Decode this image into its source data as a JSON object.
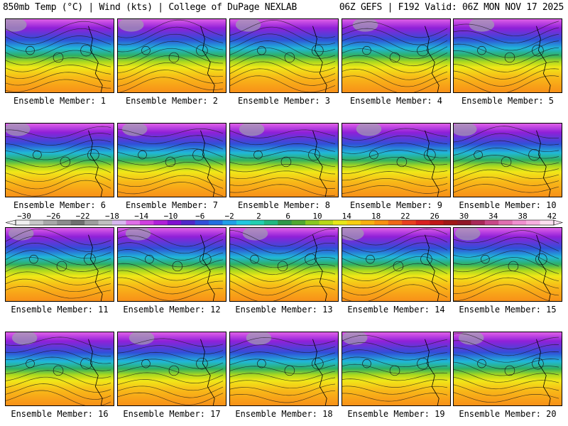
{
  "header": {
    "title": "850mb Temp (°C) | Wind (kts) | College of DuPage NEXLAB",
    "run_info": "06Z GEFS | F192 Valid: 06Z MON NOV 17 2025"
  },
  "members": [
    "Ensemble Member: 1",
    "Ensemble Member: 2",
    "Ensemble Member: 3",
    "Ensemble Member: 4",
    "Ensemble Member: 5",
    "Ensemble Member: 6",
    "Ensemble Member: 7",
    "Ensemble Member: 8",
    "Ensemble Member: 9",
    "Ensemble Member: 10",
    "Ensemble Member: 11",
    "Ensemble Member: 12",
    "Ensemble Member: 13",
    "Ensemble Member: 14",
    "Ensemble Member: 15",
    "Ensemble Member: 16",
    "Ensemble Member: 17",
    "Ensemble Member: 18",
    "Ensemble Member: 19",
    "Ensemble Member: 20"
  ],
  "colorbar": {
    "ticks": [
      "-30",
      "-26",
      "-22",
      "-18",
      "-14",
      "-10",
      "-6",
      "-2",
      "2",
      "6",
      "10",
      "14",
      "18",
      "22",
      "26",
      "30",
      "34",
      "38",
      "42"
    ],
    "colors": [
      "#f0f0f0",
      "#c8c8c8",
      "#a8a8a8",
      "#8c8c8c",
      "#707070",
      "#9e9e9e",
      "#c0c0c0",
      "#d8b8f0",
      "#e070e8",
      "#d040e0",
      "#b020d8",
      "#8010d0",
      "#5028c8",
      "#3050d8",
      "#2070e0",
      "#20a0e8",
      "#20c8e0",
      "#20d0b0",
      "#20b880",
      "#309848",
      "#50a830",
      "#88c820",
      "#b8d818",
      "#e8e818",
      "#f8d010",
      "#f8b010",
      "#f89010",
      "#f06818",
      "#e84020",
      "#d82020",
      "#c01818",
      "#a01818",
      "#901828",
      "#a82858",
      "#c84888",
      "#e070b0",
      "#f090d0",
      "#f8b0e0",
      "#fce0f0"
    ]
  }
}
